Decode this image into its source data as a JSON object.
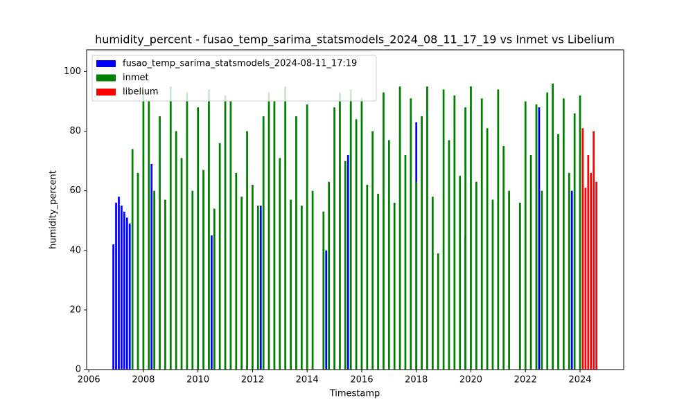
{
  "chart_data": {
    "type": "bar",
    "title": "humidity_percent - fusao_temp_sarima_statsmodels_2024_08_11_17_19 vs Inmet vs Libelium",
    "x_label": "Timestamp",
    "y_label": "humidity_percent",
    "xlim": [
      2005.92,
      2025.6
    ],
    "xticks": [
      2006,
      2008,
      2010,
      2012,
      2014,
      2016,
      2018,
      2020,
      2022,
      2024
    ],
    "ylim": [
      0,
      107.3
    ],
    "yticks": [
      0,
      20,
      40,
      60,
      80,
      100
    ],
    "legend": "upper left",
    "series": [
      {
        "name": "fusao_temp_sarima_statsmodels_2024-08-11_17:19",
        "color": "#0000ff",
        "x": [
          2006.9,
          2007.0,
          2007.1,
          2007.2,
          2007.3,
          2007.4,
          2007.5,
          2008.3,
          2010.5,
          2012.3,
          2014.7,
          2015.5,
          2018.0,
          2019.8,
          2022.5,
          2023.7
        ],
        "values": [
          42,
          56,
          58,
          55,
          53,
          51,
          49,
          69,
          45,
          55,
          40,
          72,
          83,
          45,
          88,
          60
        ]
      },
      {
        "name": "inmet",
        "color": "#008000",
        "x": [
          2007.6,
          2007.8,
          2008.0,
          2008.2,
          2008.4,
          2008.6,
          2008.8,
          2009.0,
          2009.2,
          2009.4,
          2009.6,
          2009.8,
          2010.0,
          2010.2,
          2010.4,
          2010.6,
          2010.8,
          2011.0,
          2011.2,
          2011.4,
          2011.6,
          2011.8,
          2012.0,
          2012.2,
          2012.4,
          2012.6,
          2012.8,
          2013.0,
          2013.2,
          2013.4,
          2013.6,
          2013.8,
          2014.0,
          2014.2,
          2014.4,
          2014.6,
          2014.8,
          2015.0,
          2015.2,
          2015.4,
          2015.6,
          2015.8,
          2016.0,
          2016.2,
          2016.4,
          2016.6,
          2016.8,
          2017.0,
          2017.2,
          2017.4,
          2017.6,
          2017.8,
          2018.0,
          2018.2,
          2018.4,
          2018.6,
          2018.8,
          2019.0,
          2019.2,
          2019.4,
          2019.6,
          2019.8,
          2020.0,
          2020.2,
          2020.4,
          2020.6,
          2020.8,
          2021.0,
          2021.2,
          2021.4,
          2021.6,
          2021.8,
          2022.0,
          2022.2,
          2022.4,
          2022.6,
          2022.8,
          2023.0,
          2023.2,
          2023.4,
          2023.6,
          2023.8,
          2024.0
        ],
        "values": [
          74,
          66,
          93,
          90,
          60,
          85,
          57,
          95,
          80,
          71,
          93,
          60,
          88,
          67,
          94,
          54,
          76,
          92,
          90,
          66,
          58,
          80,
          62,
          55,
          85,
          93,
          90,
          71,
          95,
          57,
          85,
          55,
          89,
          60,
          null,
          53,
          63,
          88,
          93,
          70,
          94,
          84,
          91,
          62,
          80,
          59,
          93,
          77,
          56,
          95,
          72,
          91,
          63,
          85,
          95,
          58,
          39,
          94,
          77,
          92,
          65,
          88,
          95,
          63,
          91,
          81,
          57,
          94,
          75,
          60,
          null,
          56,
          90,
          72,
          89,
          60,
          93,
          96,
          79,
          91,
          66,
          86,
          92
        ]
      },
      {
        "name": "libelium",
        "color": "#ff0000",
        "x": [
          2024.1,
          2024.2,
          2024.3,
          2024.4,
          2024.5,
          2024.6
        ],
        "values": [
          81,
          61,
          72,
          66,
          80,
          63
        ]
      }
    ]
  }
}
